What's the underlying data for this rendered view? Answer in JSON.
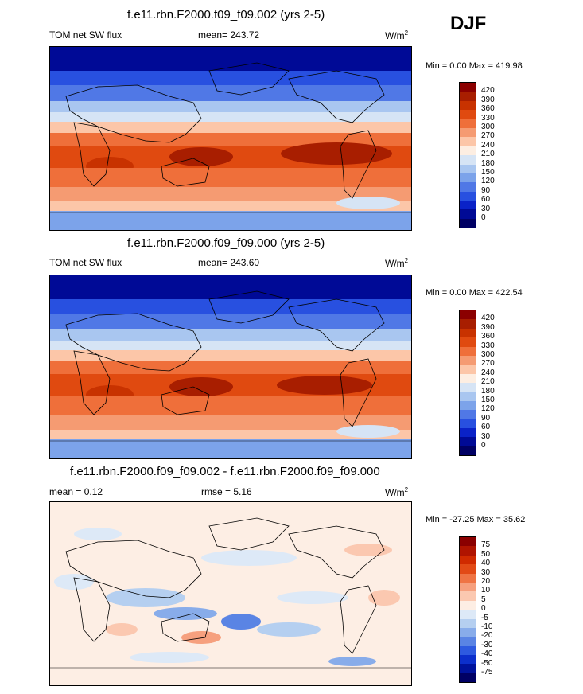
{
  "season": "DJF",
  "panels": [
    {
      "title": "f.e11.rbn.F2000.f09_f09.002 (yrs 2-5)",
      "left_label": "TOM net SW flux",
      "center_label": "mean= 243.72",
      "units_base": "W/m",
      "units_sup": "2",
      "minmax": "Min =   0.00 Max = 419.98",
      "colorbar_labels": [
        "420",
        "390",
        "360",
        "330",
        "300",
        "270",
        "240",
        "210",
        "180",
        "150",
        "120",
        "90",
        "60",
        "30",
        "0"
      ],
      "type": "abs"
    },
    {
      "title": "f.e11.rbn.F2000.f09_f09.000 (yrs 2-5)",
      "left_label": "TOM net SW flux",
      "center_label": "mean= 243.60",
      "units_base": "W/m",
      "units_sup": "2",
      "minmax": "Min =   0.00 Max = 422.54",
      "colorbar_labels": [
        "420",
        "390",
        "360",
        "330",
        "300",
        "270",
        "240",
        "210",
        "180",
        "150",
        "120",
        "90",
        "60",
        "30",
        "0"
      ],
      "type": "abs"
    },
    {
      "title": "f.e11.rbn.F2000.f09_f09.002 - f.e11.rbn.F2000.f09_f09.000",
      "left_label": "mean =   0.12",
      "center_label": "rmse =   5.16",
      "units_base": "W/m",
      "units_sup": "2",
      "minmax": "Min = -27.25 Max =  35.62",
      "colorbar_labels": [
        "75",
        "50",
        "40",
        "30",
        "20",
        "10",
        "5",
        "0",
        "-5",
        "-10",
        "-20",
        "-30",
        "-40",
        "-50",
        "-75"
      ],
      "type": "diff"
    }
  ],
  "colors": {
    "abs_scale": [
      "#8b0000",
      "#a81e00",
      "#c83200",
      "#e04a10",
      "#ef6f3a",
      "#f59b72",
      "#fcc6a8",
      "#fdeee2",
      "#d6e4f5",
      "#a9c6f0",
      "#7ca3ea",
      "#5078e6",
      "#2850e0",
      "#0a22c8",
      "#000a96",
      "#000064"
    ],
    "diff_scale": [
      "#8b0000",
      "#b01400",
      "#d02a00",
      "#e24a16",
      "#ef7444",
      "#f6a07e",
      "#fbc8b0",
      "#fdeee4",
      "#dde9f7",
      "#b5cff0",
      "#88acea",
      "#5a84e4",
      "#2e5ae0",
      "#0c2fcc",
      "#00129c",
      "#000064"
    ]
  }
}
